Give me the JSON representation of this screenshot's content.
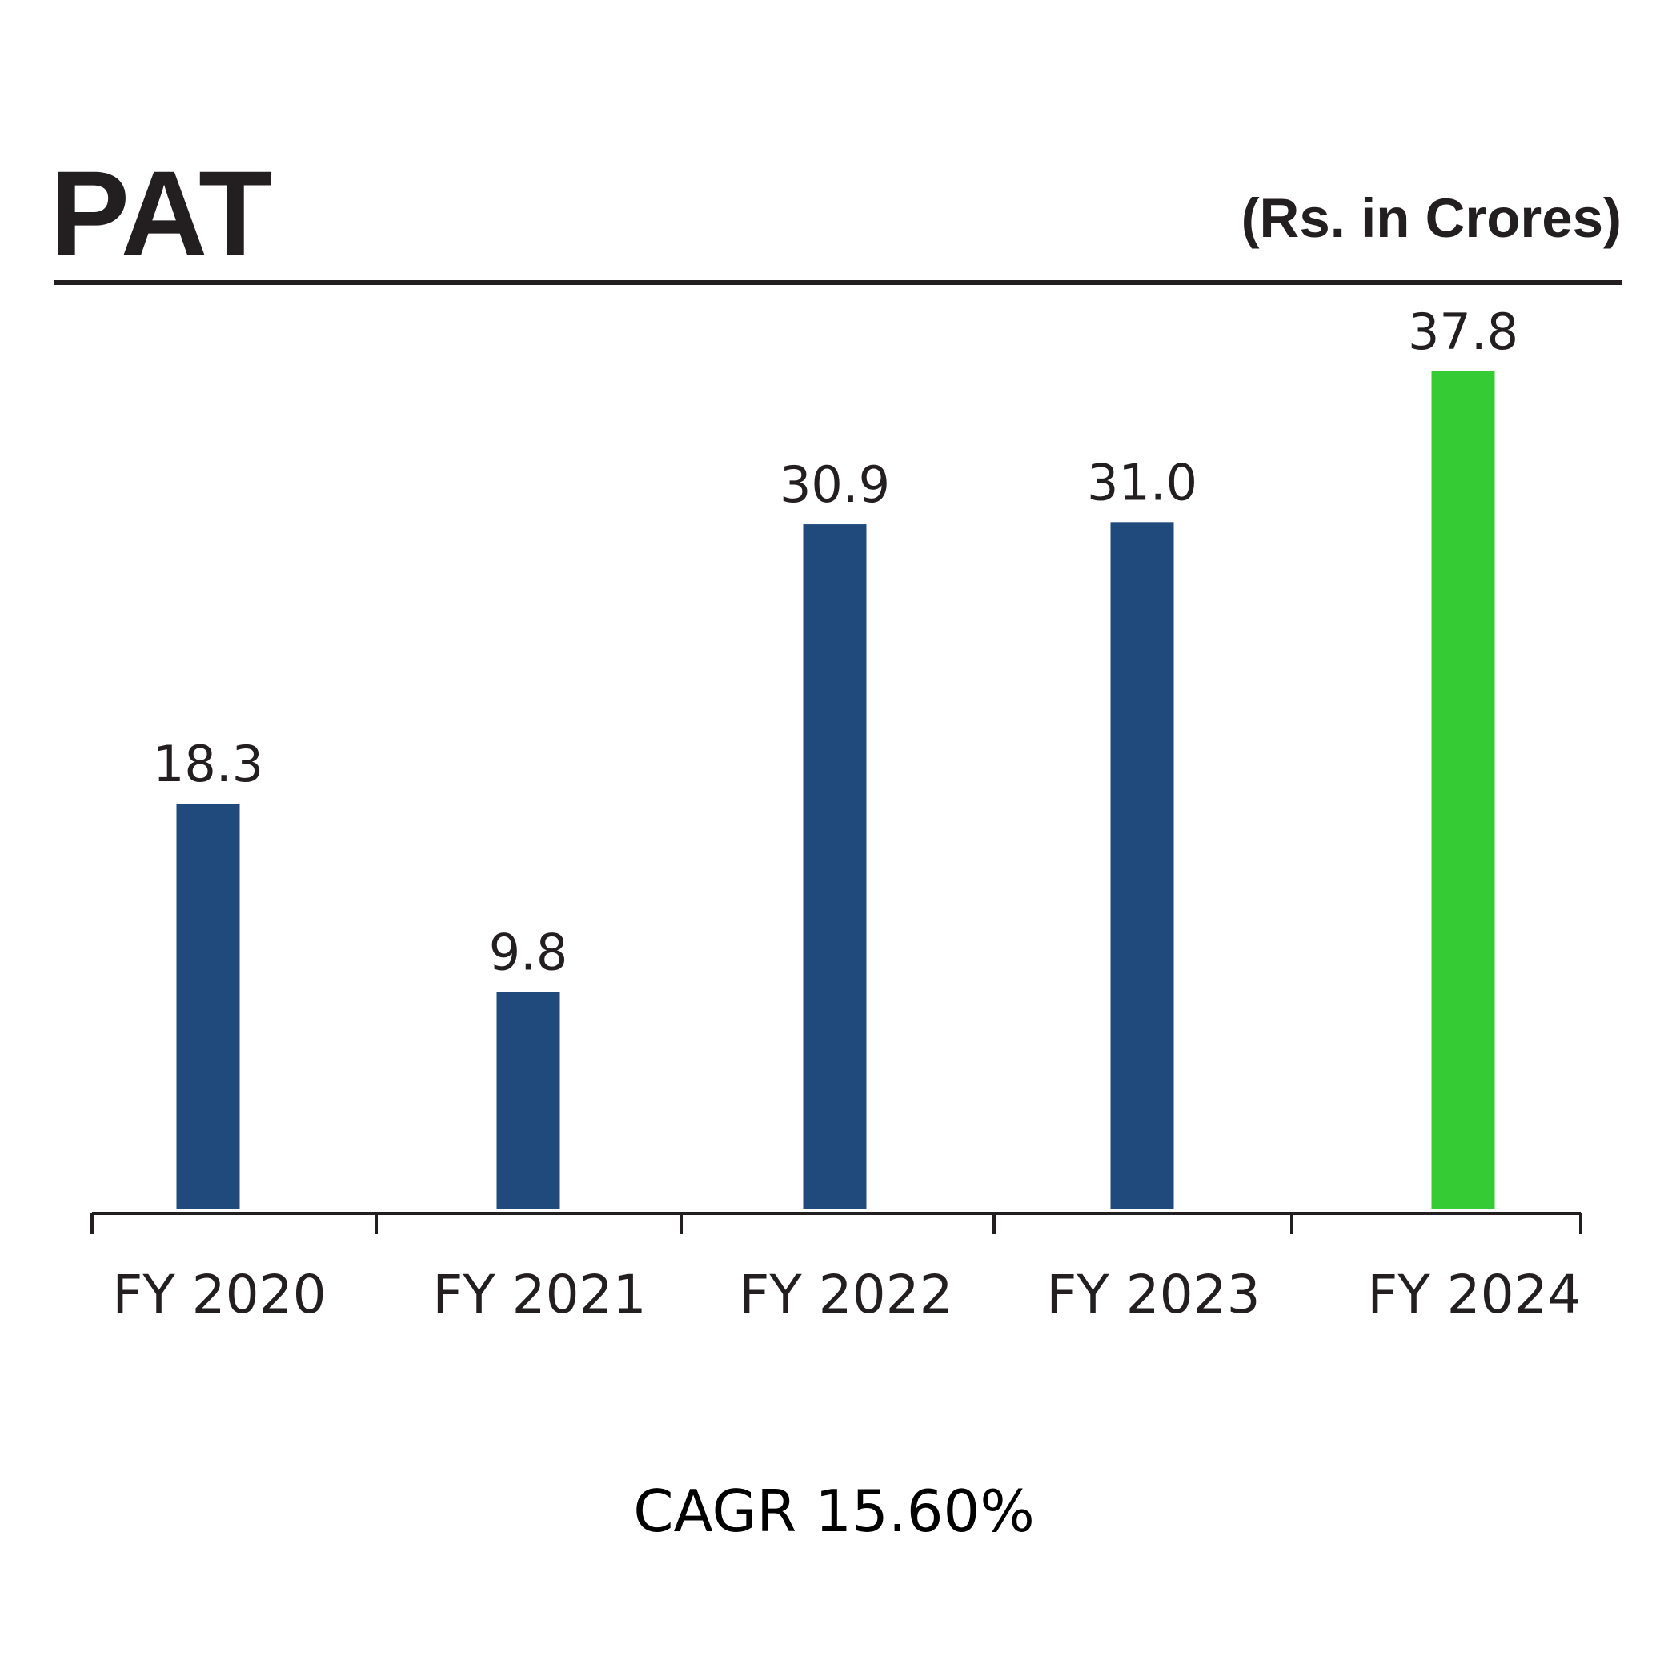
{
  "chart_data": {
    "type": "bar",
    "title": "PAT",
    "unit_label": "(Rs. in Crores)",
    "categories": [
      "FY 2020",
      "FY 2021",
      "FY 2022",
      "FY 2023",
      "FY 2024"
    ],
    "values": [
      18.3,
      9.8,
      30.9,
      31.0,
      37.8
    ],
    "value_labels": [
      "18.3",
      "9.8",
      "30.9",
      "31.0",
      "37.8"
    ],
    "ylim": [
      0,
      40
    ],
    "grid": false,
    "colors": {
      "default_bar": "#214a7c",
      "highlight_bar": "#35cb35",
      "highlight_index": 4,
      "text": "#231f20"
    }
  },
  "footer": {
    "cagr_text": "CAGR 15.60%"
  }
}
